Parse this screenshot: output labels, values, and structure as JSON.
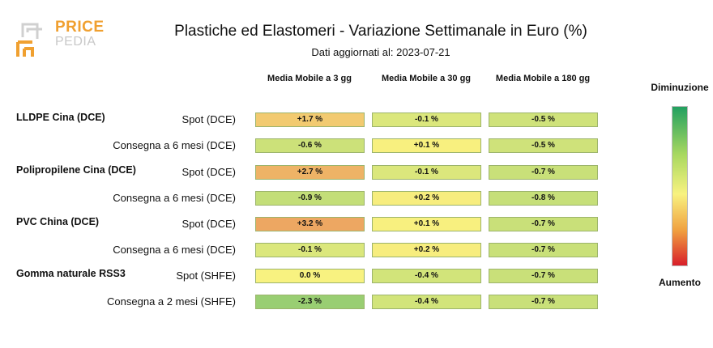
{
  "logo": {
    "line1": "PRICE",
    "line2": "PEDIA"
  },
  "title": "Plastiche ed Elastomeri - Variazione Settimanale in Euro (%)",
  "subtitle": "Dati aggiornati al: 2023-07-21",
  "columns": [
    {
      "label": "Media Mobile a 3 gg"
    },
    {
      "label": "Media Mobile a 30 gg"
    },
    {
      "label": "Media Mobile a 180 gg"
    }
  ],
  "legend": {
    "top": "Diminuzione",
    "bottom": "Aumento"
  },
  "colors": {
    "decrease": "#22a060",
    "neutral": "#f8f280",
    "increase": "#d81e2a"
  },
  "chart_data": {
    "type": "table",
    "title": "Plastiche ed Elastomeri - Variazione Settimanale in Euro (%)",
    "columns": [
      "Media Mobile a 3 gg",
      "Media Mobile a 30 gg",
      "Media Mobile a 180 gg"
    ],
    "groups": [
      {
        "name": "LLDPE Cina (DCE)",
        "rows": [
          {
            "label": "Spot (DCE)",
            "values": [
              1.7,
              -0.1,
              -0.5
            ],
            "texts": [
              "+1.7 %",
              "-0.1 %",
              "-0.5 %"
            ]
          },
          {
            "label": "Consegna a 6 mesi (DCE)",
            "values": [
              -0.6,
              0.1,
              -0.5
            ],
            "texts": [
              "-0.6 %",
              "+0.1 %",
              "-0.5 %"
            ]
          }
        ]
      },
      {
        "name": "Polipropilene Cina (DCE)",
        "rows": [
          {
            "label": "Spot (DCE)",
            "values": [
              2.7,
              -0.1,
              -0.7
            ],
            "texts": [
              "+2.7 %",
              "-0.1 %",
              "-0.7 %"
            ]
          },
          {
            "label": "Consegna a 6 mesi (DCE)",
            "values": [
              -0.9,
              0.2,
              -0.8
            ],
            "texts": [
              "-0.9 %",
              "+0.2 %",
              "-0.8 %"
            ]
          }
        ]
      },
      {
        "name": "PVC China (DCE)",
        "rows": [
          {
            "label": "Spot (DCE)",
            "values": [
              3.2,
              0.1,
              -0.7
            ],
            "texts": [
              "+3.2 %",
              "+0.1 %",
              "-0.7 %"
            ]
          },
          {
            "label": "Consegna a 6 mesi (DCE)",
            "values": [
              -0.1,
              0.2,
              -0.7
            ],
            "texts": [
              "-0.1 %",
              "+0.2 %",
              "-0.7 %"
            ]
          }
        ]
      },
      {
        "name": "Gomma naturale RSS3",
        "rows": [
          {
            "label": "Spot (SHFE)",
            "values": [
              0.0,
              -0.4,
              -0.7
            ],
            "texts": [
              "0.0 %",
              "-0.4 %",
              "-0.7 %"
            ]
          },
          {
            "label": "Consegna a 2 mesi (SHFE)",
            "values": [
              -2.3,
              -0.4,
              -0.7
            ],
            "texts": [
              "-2.3 %",
              "-0.4 %",
              "-0.7 %"
            ]
          }
        ]
      }
    ]
  }
}
